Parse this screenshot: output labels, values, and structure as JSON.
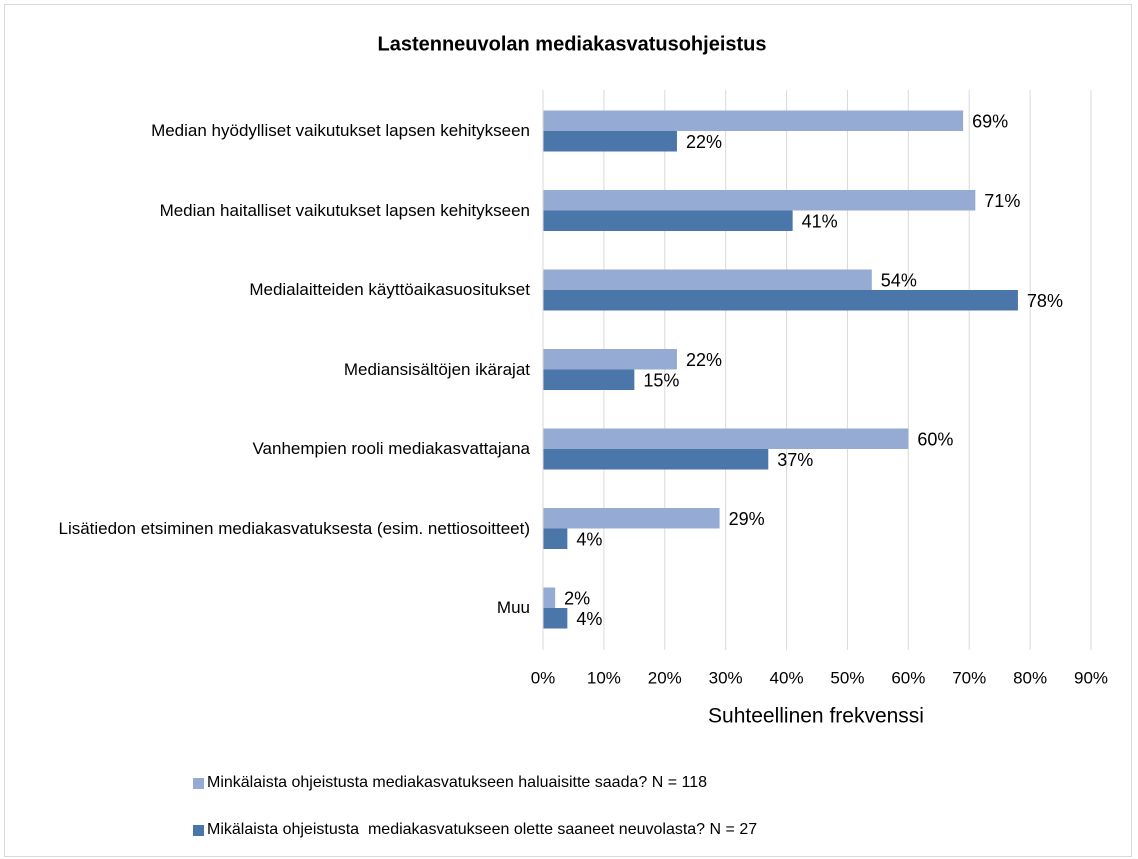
{
  "chart_data": {
    "type": "barh",
    "title": "Lastenneuvolan mediakasvatusohjeistus",
    "x_label": "Suhteellinen frekvenssi",
    "categories": [
      "Median hyödylliset vaikutukset lapsen kehitykseen",
      "Median haitalliset vaikutukset lapsen kehitykseen",
      "Medialaitteiden käyttöaikasuositukset",
      "Mediansisältöjen ikärajat",
      "Vanhempien rooli mediakasvattajana",
      "Lisätiedon etsiminen mediakasvatuksesta (esim. nettiosoitteet)",
      "Muu"
    ],
    "series": [
      {
        "name": "Minkälaista ohjeistusta mediakasvatukseen haluaisitte saada? N = 118",
        "color": "#95abd4",
        "values": [
          69,
          71,
          54,
          22,
          60,
          29,
          2
        ],
        "value_labels": [
          "69%",
          "71%",
          "54%",
          "22%",
          "60%",
          "29%",
          "2%"
        ]
      },
      {
        "name": "Mikälaista ohjeistusta  mediakasvatukseen olette saaneet neuvolasta? N = 27",
        "color": "#4a76aa",
        "values": [
          22,
          41,
          78,
          15,
          37,
          4,
          4
        ],
        "value_labels": [
          "22%",
          "41%",
          "78%",
          "15%",
          "37%",
          "4%",
          "4%"
        ]
      }
    ],
    "xlim": [
      0,
      90
    ],
    "xticks": [
      {
        "value": 0,
        "label": "0%"
      },
      {
        "value": 10,
        "label": "10%"
      },
      {
        "value": 20,
        "label": "20%"
      },
      {
        "value": 30,
        "label": "30%"
      },
      {
        "value": 40,
        "label": "40%"
      },
      {
        "value": 50,
        "label": "50%"
      },
      {
        "value": 60,
        "label": "60%"
      },
      {
        "value": 70,
        "label": "70%"
      },
      {
        "value": 80,
        "label": "80%"
      },
      {
        "value": 90,
        "label": "90%"
      }
    ],
    "grid": true,
    "legend": "bottom"
  }
}
